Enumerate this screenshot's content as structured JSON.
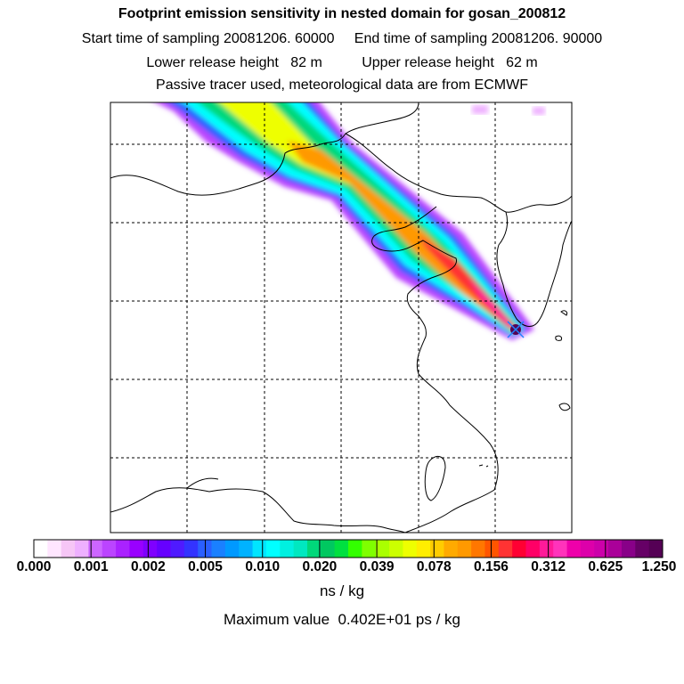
{
  "titles": {
    "line1": "Footprint emission sensitivity in nested domain for gosan_200812",
    "line2": "Start time of sampling 20081206. 60000     End time of sampling 20081206. 90000",
    "line3": "Lower release height   82 m          Upper release height   62 m",
    "line4": "Passive tracer used, meteorological data are from ECMWF"
  },
  "colorbar": {
    "tick_labels": [
      "0.000",
      "0.001",
      "0.002",
      "0.005",
      "0.010",
      "0.020",
      "0.039",
      "0.078",
      "0.156",
      "0.312",
      "0.625",
      "1.250"
    ],
    "colors": [
      "#ffffff",
      "#ffe6ff",
      "#f6c6f6",
      "#eeb0ff",
      "#cc66ff",
      "#bb44ff",
      "#aa22ff",
      "#9900ff",
      "#7f00ff",
      "#6600ff",
      "#4f1aff",
      "#3333ff",
      "#2a5fff",
      "#1a80ff",
      "#0099ff",
      "#00b2ff",
      "#00e5ff",
      "#00ffff",
      "#00f0e0",
      "#00e8c0",
      "#00d87a",
      "#00c860",
      "#00e040",
      "#33ff00",
      "#7fff00",
      "#aaff00",
      "#ccff00",
      "#eeff00",
      "#ffee00",
      "#ffcc00",
      "#ffaa00",
      "#ff9900",
      "#ff7700",
      "#ff5500",
      "#ff3333",
      "#ff0033",
      "#ff0066",
      "#ff1a99",
      "#ff33bb",
      "#ee00aa",
      "#dd00aa",
      "#cc00aa",
      "#aa0099",
      "#880088",
      "#660066",
      "#550055"
    ],
    "unit": "ns / kg"
  },
  "max_value": "Maximum value  0.402E+01 ps / kg"
}
